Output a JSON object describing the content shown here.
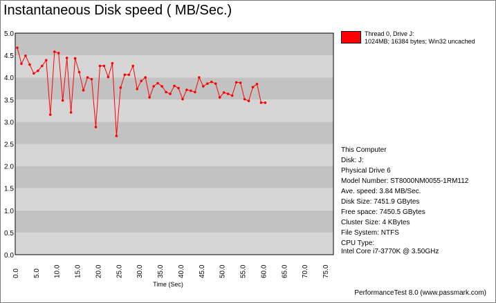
{
  "title": "Instantaneous Disk speed ( MB/Sec.)",
  "legend": {
    "line1": "Thread 0, Drive J:",
    "line2": "1024MB; 16384 bytes; Win32 uncached",
    "color": "#ff0000"
  },
  "info": {
    "computer": "This Computer",
    "disk": "Disk: J:",
    "physical_drive": "Physical Drive 6",
    "model": "Model Number: ST8000NM0055-1RM112",
    "ave_speed": "Ave. speed: 3.84 MB/Sec.",
    "disk_size": "Disk Size: 7451.9 GBytes",
    "free_space": "Free space: 7450.5 GBytes",
    "cluster_size": "Cluster Size: 4 KBytes",
    "file_system": "File System: NTFS",
    "cpu_type": "CPU Type:",
    "cpu_value": "Intel Core i7-3770K @ 3.50GHz"
  },
  "footer": "PerformanceTest 8.0 (www.passmark.com)",
  "chart_data": {
    "type": "line",
    "title": "Instantaneous Disk speed ( MB/Sec.)",
    "xlabel": "Time (Sec)",
    "ylabel": "",
    "xlim": [
      0,
      77
    ],
    "ylim": [
      0,
      5.0
    ],
    "x_ticks": [
      "0.0",
      "5.0",
      "10.0",
      "15.0",
      "20.0",
      "25.0",
      "30.0",
      "35.0",
      "40.0",
      "45.0",
      "50.0",
      "55.0",
      "60.0",
      "65.0",
      "70.0",
      "75.0"
    ],
    "y_ticks": [
      "0.0",
      "0.5",
      "1.0",
      "1.5",
      "2.0",
      "2.5",
      "3.0",
      "3.5",
      "4.0",
      "4.5",
      "5.0"
    ],
    "grid": "horizontal alternating bands",
    "series": [
      {
        "name": "Thread 0, Drive J:",
        "color": "#ff0000",
        "x": [
          0.5,
          1.5,
          2.5,
          3.5,
          4.5,
          5.5,
          6.5,
          7.5,
          8.5,
          9.5,
          10.5,
          11.5,
          12.5,
          13.5,
          14.5,
          15.5,
          16.5,
          17.5,
          18.5,
          19.5,
          20.5,
          21.5,
          22.5,
          23.5,
          24.5,
          25.5,
          26.5,
          27.5,
          28.5,
          29.5,
          30.5,
          31.5,
          32.5,
          33.5,
          34.5,
          35.5,
          36.5,
          37.5,
          38.5,
          39.5,
          40.5,
          41.5,
          42.5,
          43.5,
          44.5,
          45.5,
          46.5,
          47.5,
          48.5,
          49.5,
          50.5,
          51.5,
          52.5,
          53.5,
          54.5,
          55.5,
          56.5,
          57.5,
          58.5,
          59.5,
          60.5
        ],
        "values": [
          4.67,
          4.31,
          4.49,
          4.29,
          4.09,
          4.15,
          4.26,
          4.39,
          3.16,
          4.58,
          4.55,
          3.48,
          4.44,
          3.21,
          4.43,
          4.12,
          3.71,
          4.0,
          3.96,
          2.88,
          4.26,
          4.26,
          4.01,
          4.32,
          2.68,
          3.77,
          4.06,
          4.06,
          4.26,
          3.74,
          3.92,
          4.0,
          3.55,
          3.8,
          3.87,
          3.8,
          3.67,
          3.63,
          3.81,
          3.76,
          3.51,
          3.72,
          3.7,
          3.67,
          4.0,
          3.8,
          3.86,
          3.9,
          3.86,
          3.55,
          3.66,
          3.63,
          3.59,
          3.89,
          3.88,
          3.51,
          3.47,
          3.78,
          3.85,
          3.43,
          3.43
        ]
      }
    ]
  }
}
